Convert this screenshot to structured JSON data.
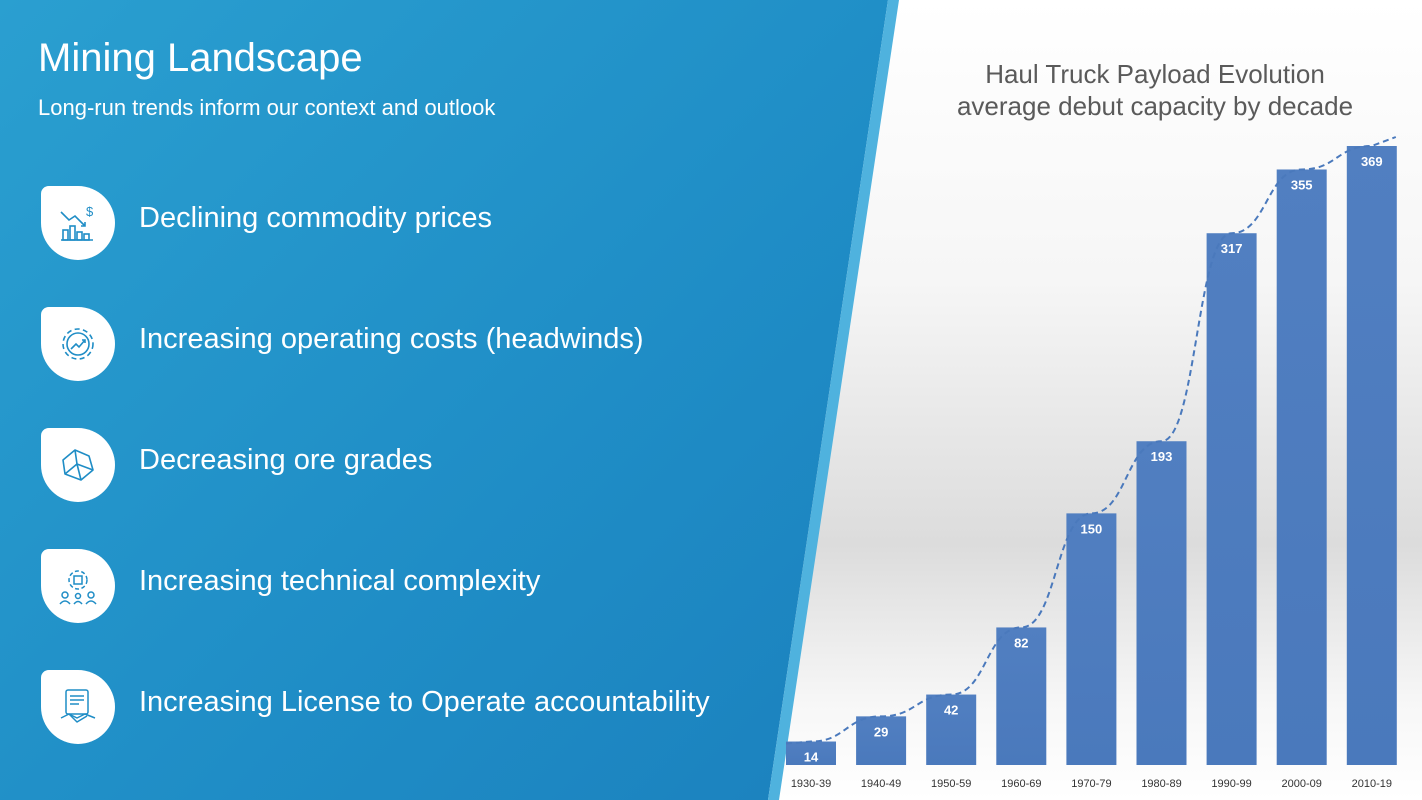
{
  "slide": {
    "title": "Mining Landscape",
    "subtitle": "Long-run trends inform our context and outlook",
    "colors": {
      "panel": "#1f8dc6",
      "bar": "#4a79bc",
      "title_text": "#5a5a5a"
    }
  },
  "trends": [
    {
      "label": "Declining commodity prices",
      "icon": "declining-prices-icon"
    },
    {
      "label": "Increasing operating costs (headwinds)",
      "icon": "gear-growth-icon"
    },
    {
      "label": "Decreasing ore grades",
      "icon": "ore-rock-icon"
    },
    {
      "label": "Increasing technical complexity",
      "icon": "tech-team-icon"
    },
    {
      "label": "Increasing License to Operate accountability",
      "icon": "contract-handshake-icon"
    }
  ],
  "chart_data": {
    "type": "bar",
    "title_line1": "Haul Truck Payload Evolution",
    "title_line2": "average debut capacity by decade",
    "categories": [
      "1930-39",
      "1940-49",
      "1950-59",
      "1960-69",
      "1970-79",
      "1980-89",
      "1990-99",
      "2000-09",
      "2010-19"
    ],
    "values": [
      14,
      29,
      42,
      82,
      150,
      193,
      317,
      355,
      369
    ],
    "data_labels": true,
    "trendline": "dashed",
    "ylim": [
      0,
      369
    ],
    "grid": false,
    "bar_color": "#4a79bc"
  }
}
